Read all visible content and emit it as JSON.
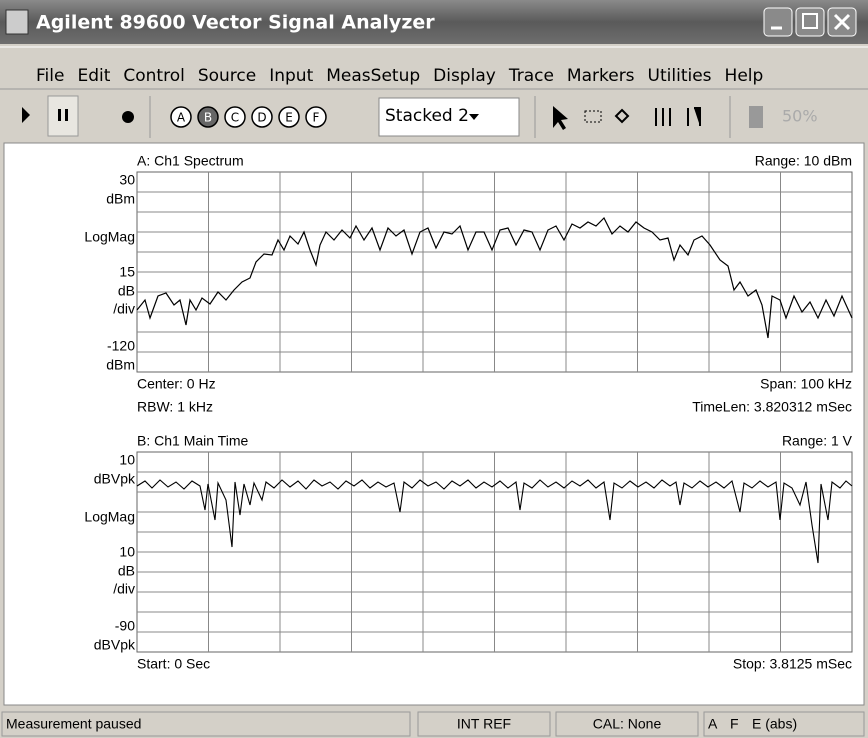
{
  "window": {
    "title": "Agilent 89600 Vector Signal Analyzer"
  },
  "menu": [
    "File",
    "Edit",
    "Control",
    "Source",
    "Input",
    "MeasSetup",
    "Display",
    "Trace",
    "Markers",
    "Utilities",
    "Help"
  ],
  "toolbar": {
    "traces": [
      "A",
      "B",
      "C",
      "D",
      "E",
      "F"
    ],
    "layout": "Stacked 2",
    "zoom": "50%"
  },
  "traces": [
    {
      "label": "A: Ch1 Spectrum",
      "range": "Range: 10 dBm",
      "y_labels": [
        "30",
        "dBm",
        "LogMag",
        "15",
        "dB",
        "/div",
        "-120",
        "dBm"
      ],
      "footer_left": [
        "Center: 0  Hz",
        "RBW: 1 kHz"
      ],
      "footer_right": [
        "Span: 100 kHz",
        "TimeLen: 3.820312 mSec"
      ]
    },
    {
      "label": "B: Ch1 Main Time",
      "range": "Range: 1  V",
      "y_labels": [
        "10",
        "dBVpk",
        "LogMag",
        "10",
        "dB",
        "/div",
        "-90",
        "dBVpk"
      ],
      "footer_left": [
        "Start: 0  Sec"
      ],
      "footer_right": [
        "Stop: 3.8125 mSec"
      ]
    }
  ],
  "status": {
    "message": "Measurement paused",
    "ref": "INT REF",
    "cal": "CAL: None",
    "flags": [
      "A",
      "F",
      "E (abs)"
    ]
  }
}
